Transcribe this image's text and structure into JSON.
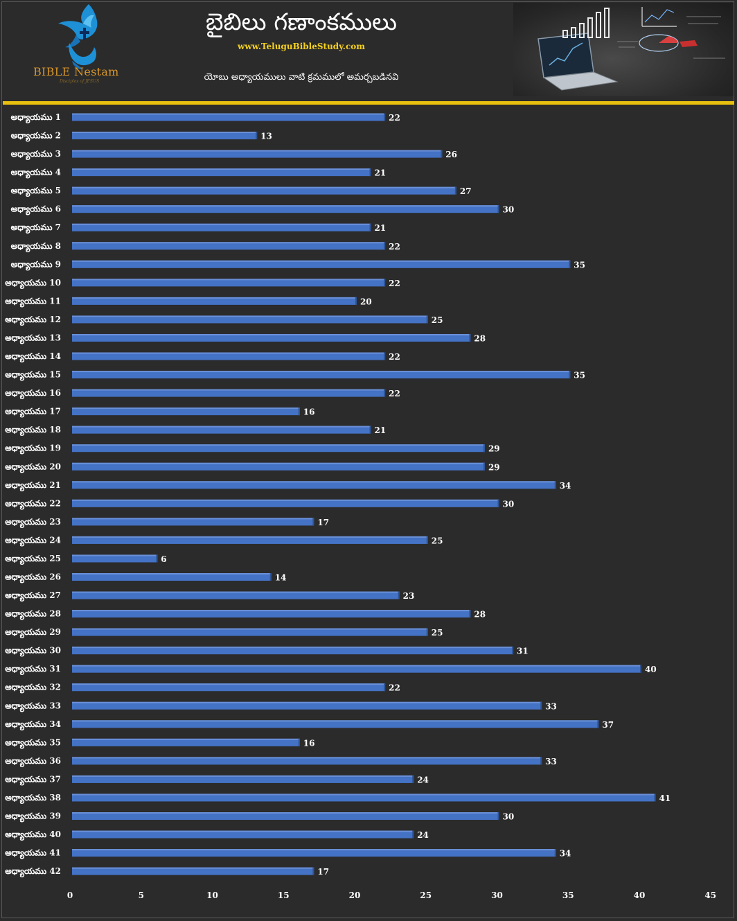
{
  "header": {
    "title": "బైబిలు గణాంకములు",
    "website": "www.TeluguBibleStudy.com",
    "subtitle": "యోబు అధ్యాయములు వాటి క్రమములో అమర్చబడినవి",
    "logo_text": "BIBLE Nestam",
    "logo_sub": "Disciples of JESUS"
  },
  "colors": {
    "background": "#2b2b2b",
    "bar": "#4472c4",
    "bar_highlight": "#6a90d8",
    "divider": "#e8c10f",
    "website": "#f5d020",
    "logo": "#d8962a"
  },
  "chart_data": {
    "type": "bar",
    "orientation": "horizontal",
    "title": "యోబు అధ్యాయములు వాటి క్రమములో అమర్చబడినవి",
    "xlabel": "",
    "ylabel": "",
    "xlim": [
      0,
      45
    ],
    "xticks": [
      0,
      5,
      10,
      15,
      20,
      25,
      30,
      35,
      40,
      45
    ],
    "grid": false,
    "categories": [
      "అధ్యాయము 1",
      "అధ్యాయము 2",
      "అధ్యాయము 3",
      "అధ్యాయము 4",
      "అధ్యాయము 5",
      "అధ్యాయము 6",
      "అధ్యాయము 7",
      "అధ్యాయము 8",
      "అధ్యాయము 9",
      "అధ్యాయము 10",
      "అధ్యాయము 11",
      "అధ్యాయము 12",
      "అధ్యాయము 13",
      "అధ్యాయము 14",
      "అధ్యాయము 15",
      "అధ్యాయము 16",
      "అధ్యాయము 17",
      "అధ్యాయము 18",
      "అధ్యాయము 19",
      "అధ్యాయము 20",
      "అధ్యాయము 21",
      "అధ్యాయము 22",
      "అధ్యాయము 23",
      "అధ్యాయము 24",
      "అధ్యాయము 25",
      "అధ్యాయము 26",
      "అధ్యాయము 27",
      "అధ్యాయము 28",
      "అధ్యాయము 29",
      "అధ్యాయము 30",
      "అధ్యాయము 31",
      "అధ్యాయము 32",
      "అధ్యాయము 33",
      "అధ్యాయము 34",
      "అధ్యాయము 35",
      "అధ్యాయము 36",
      "అధ్యాయము 37",
      "అధ్యాయము 38",
      "అధ్యాయము 39",
      "అధ్యాయము 40",
      "అధ్యాయము 41",
      "అధ్యాయము 42"
    ],
    "values": [
      22,
      13,
      26,
      21,
      27,
      30,
      21,
      22,
      35,
      22,
      20,
      25,
      28,
      22,
      35,
      22,
      16,
      21,
      29,
      29,
      34,
      30,
      17,
      25,
      6,
      14,
      23,
      28,
      25,
      31,
      40,
      22,
      33,
      37,
      16,
      33,
      24,
      41,
      30,
      24,
      34,
      17
    ]
  }
}
